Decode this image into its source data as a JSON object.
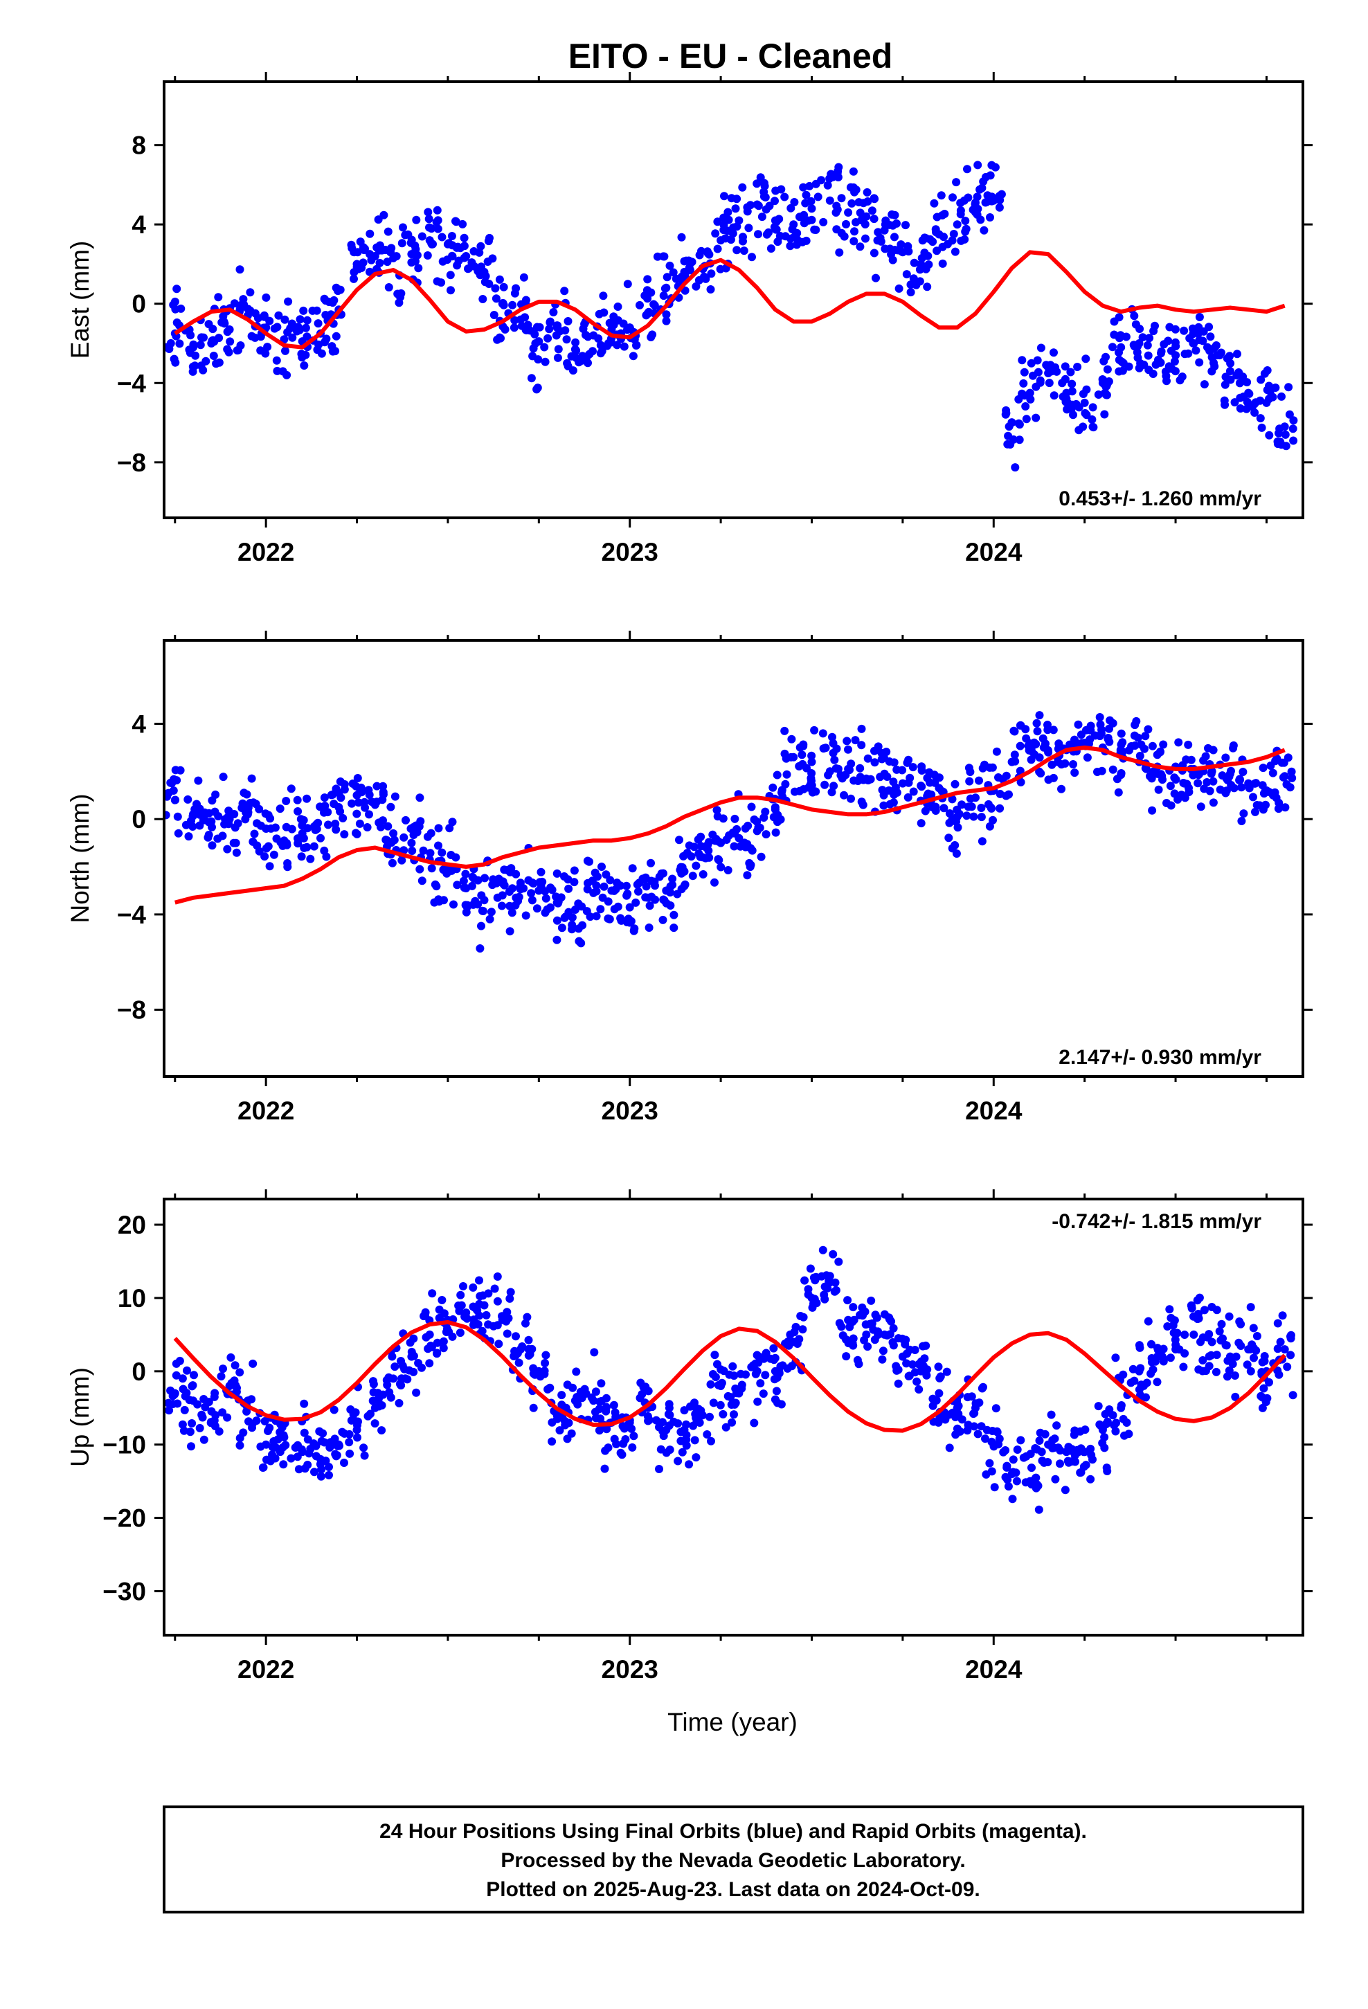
{
  "title": "EITO  - EU - Cleaned",
  "xlabel": "Time (year)",
  "footer": {
    "line1": "24 Hour Positions Using Final Orbits (blue) and Rapid Orbits (magenta).",
    "line2": "Processed by the Nevada Geodetic Laboratory.",
    "line3": "Plotted on 2025-Aug-23. Last data on 2024-Oct-09."
  },
  "colors": {
    "observations": "#0000ff",
    "model": "#ff0000",
    "frame": "#000000"
  },
  "chart_data": [
    {
      "type": "scatter",
      "ylabel": "East (mm)",
      "xlim": [
        2021.72,
        2024.85
      ],
      "ylim": [
        -10.8,
        11.2
      ],
      "x_ticks": [
        2022,
        2023,
        2024
      ],
      "y_ticks": [
        -8,
        -4,
        0,
        4,
        8
      ],
      "rate_label": "0.453+/- 1.260 mm/yr",
      "rate_position": "bottom-right",
      "series": [
        {
          "role": "observations",
          "color": "#0000ff",
          "x": [
            2021.75,
            2021.8,
            2021.85,
            2021.9,
            2021.95,
            2022.0,
            2022.05,
            2022.1,
            2022.15,
            2022.2,
            2022.25,
            2022.3,
            2022.35,
            2022.4,
            2022.45,
            2022.5,
            2022.55,
            2022.6,
            2022.65,
            2022.7,
            2022.75,
            2022.8,
            2022.85,
            2022.9,
            2022.95,
            2023.0,
            2023.05,
            2023.1,
            2023.15,
            2023.2,
            2023.25,
            2023.3,
            2023.35,
            2023.4,
            2023.45,
            2023.5,
            2023.55,
            2023.6,
            2023.65,
            2023.7,
            2023.75,
            2023.8,
            2023.85,
            2023.9,
            2023.95,
            2024.0,
            2024.05,
            2024.1,
            2024.15,
            2024.2,
            2024.25,
            2024.3,
            2024.35,
            2024.4,
            2024.45,
            2024.5,
            2024.55,
            2024.6,
            2024.65,
            2024.7,
            2024.75,
            2024.8
          ],
          "y": [
            -1.5,
            -2.2,
            -2.0,
            -1.3,
            -0.6,
            -1.2,
            -1.8,
            -1.9,
            -1.5,
            -0.3,
            2.0,
            2.4,
            2.3,
            2.5,
            3.2,
            3.0,
            2.4,
            1.6,
            0.0,
            -0.8,
            -1.9,
            -1.2,
            -2.3,
            -1.6,
            -1.3,
            -1.2,
            -0.5,
            0.8,
            1.6,
            1.8,
            3.2,
            4.2,
            5.0,
            4.2,
            4.0,
            4.8,
            5.2,
            4.6,
            4.4,
            3.7,
            2.6,
            2.0,
            3.5,
            4.0,
            5.1,
            5.2,
            -6.0,
            -4.5,
            -3.5,
            -4.5,
            -5.0,
            -4.0,
            -2.2,
            -2.0,
            -3.0,
            -2.6,
            -2.0,
            -2.7,
            -3.4,
            -4.5,
            -5.0,
            -6.2
          ]
        },
        {
          "role": "model",
          "color": "#ff0000",
          "x": [
            2021.75,
            2021.8,
            2021.85,
            2021.9,
            2021.95,
            2022.0,
            2022.05,
            2022.1,
            2022.15,
            2022.2,
            2022.25,
            2022.3,
            2022.35,
            2022.4,
            2022.45,
            2022.5,
            2022.55,
            2022.6,
            2022.65,
            2022.7,
            2022.75,
            2022.8,
            2022.85,
            2022.9,
            2022.95,
            2023.0,
            2023.05,
            2023.1,
            2023.15,
            2023.2,
            2023.25,
            2023.3,
            2023.35,
            2023.4,
            2023.45,
            2023.5,
            2023.55,
            2023.6,
            2023.65,
            2023.7,
            2023.75,
            2023.8,
            2023.85,
            2023.9,
            2023.95,
            2024.0,
            2024.05,
            2024.1,
            2024.15,
            2024.2,
            2024.25,
            2024.3,
            2024.35,
            2024.4,
            2024.45,
            2024.5,
            2024.55,
            2024.6,
            2024.65,
            2024.7,
            2024.75,
            2024.8
          ],
          "y": [
            -1.5,
            -0.9,
            -0.4,
            -0.3,
            -0.8,
            -1.5,
            -2.1,
            -2.2,
            -1.5,
            -0.4,
            0.7,
            1.5,
            1.7,
            1.2,
            0.2,
            -0.9,
            -1.4,
            -1.3,
            -0.9,
            -0.3,
            0.1,
            0.1,
            -0.3,
            -1.0,
            -1.6,
            -1.7,
            -1.1,
            -0.1,
            1.0,
            1.9,
            2.2,
            1.7,
            0.8,
            -0.3,
            -0.9,
            -0.9,
            -0.5,
            0.1,
            0.5,
            0.5,
            0.1,
            -0.6,
            -1.2,
            -1.2,
            -0.5,
            0.6,
            1.8,
            2.6,
            2.5,
            1.6,
            0.6,
            -0.1,
            -0.4,
            -0.2,
            -0.1,
            -0.3,
            -0.4,
            -0.3,
            -0.2,
            -0.3,
            -0.4,
            -0.1
          ]
        }
      ]
    },
    {
      "type": "scatter",
      "ylabel": "North (mm)",
      "xlim": [
        2021.72,
        2024.85
      ],
      "ylim": [
        -10.8,
        7.5
      ],
      "x_ticks": [
        2022,
        2023,
        2024
      ],
      "y_ticks": [
        -8,
        -4,
        0,
        4
      ],
      "rate_label": "2.147+/- 0.930 mm/yr",
      "rate_position": "bottom-right",
      "series": [
        {
          "role": "observations",
          "color": "#0000ff",
          "x": [
            2021.75,
            2021.8,
            2021.85,
            2021.9,
            2021.95,
            2022.0,
            2022.05,
            2022.1,
            2022.15,
            2022.2,
            2022.25,
            2022.3,
            2022.35,
            2022.4,
            2022.45,
            2022.5,
            2022.55,
            2022.6,
            2022.65,
            2022.7,
            2022.75,
            2022.8,
            2022.85,
            2022.9,
            2022.95,
            2023.0,
            2023.05,
            2023.1,
            2023.15,
            2023.2,
            2023.25,
            2023.3,
            2023.35,
            2023.4,
            2023.45,
            2023.5,
            2023.55,
            2023.6,
            2023.65,
            2023.7,
            2023.75,
            2023.8,
            2023.85,
            2023.9,
            2023.95,
            2024.0,
            2024.05,
            2024.1,
            2024.15,
            2024.2,
            2024.25,
            2024.3,
            2024.35,
            2024.4,
            2024.45,
            2024.5,
            2024.55,
            2024.6,
            2024.65,
            2024.7,
            2024.75,
            2024.8
          ],
          "y": [
            0.8,
            0.2,
            -0.1,
            0.0,
            0.2,
            -0.4,
            -0.9,
            -0.6,
            -0.8,
            0.5,
            1.0,
            0.6,
            -0.6,
            -1.0,
            -1.7,
            -2.1,
            -2.9,
            -3.4,
            -3.2,
            -2.9,
            -3.0,
            -3.5,
            -3.8,
            -3.1,
            -3.0,
            -3.7,
            -3.3,
            -3.0,
            -2.2,
            -1.6,
            -1.0,
            -0.8,
            -0.5,
            0.4,
            2.6,
            2.4,
            2.0,
            2.1,
            1.7,
            1.9,
            1.5,
            1.4,
            1.3,
            0.1,
            0.9,
            1.2,
            2.4,
            3.1,
            2.8,
            2.9,
            3.2,
            3.0,
            2.8,
            2.4,
            2.2,
            2.2,
            2.1,
            2.0,
            1.9,
            1.5,
            1.2,
            1.8
          ]
        },
        {
          "role": "model",
          "color": "#ff0000",
          "x": [
            2021.75,
            2021.8,
            2021.85,
            2021.9,
            2021.95,
            2022.0,
            2022.05,
            2022.1,
            2022.15,
            2022.2,
            2022.25,
            2022.3,
            2022.35,
            2022.4,
            2022.45,
            2022.5,
            2022.55,
            2022.6,
            2022.65,
            2022.7,
            2022.75,
            2022.8,
            2022.85,
            2022.9,
            2022.95,
            2023.0,
            2023.05,
            2023.1,
            2023.15,
            2023.2,
            2023.25,
            2023.3,
            2023.35,
            2023.4,
            2023.45,
            2023.5,
            2023.55,
            2023.6,
            2023.65,
            2023.7,
            2023.75,
            2023.8,
            2023.85,
            2023.9,
            2023.95,
            2024.0,
            2024.05,
            2024.1,
            2024.15,
            2024.2,
            2024.25,
            2024.3,
            2024.35,
            2024.4,
            2024.45,
            2024.5,
            2024.55,
            2024.6,
            2024.65,
            2024.7,
            2024.75,
            2024.8
          ],
          "y": [
            -3.5,
            -3.3,
            -3.2,
            -3.1,
            -3.0,
            -2.9,
            -2.8,
            -2.5,
            -2.1,
            -1.6,
            -1.3,
            -1.2,
            -1.4,
            -1.6,
            -1.8,
            -1.9,
            -2.0,
            -1.9,
            -1.6,
            -1.4,
            -1.2,
            -1.1,
            -1.0,
            -0.9,
            -0.9,
            -0.8,
            -0.6,
            -0.3,
            0.1,
            0.4,
            0.7,
            0.9,
            0.9,
            0.8,
            0.6,
            0.4,
            0.3,
            0.2,
            0.2,
            0.3,
            0.5,
            0.7,
            0.9,
            1.1,
            1.2,
            1.3,
            1.6,
            2.0,
            2.5,
            2.9,
            3.0,
            2.9,
            2.6,
            2.4,
            2.2,
            2.1,
            2.1,
            2.2,
            2.3,
            2.4,
            2.6,
            2.9
          ]
        }
      ]
    },
    {
      "type": "scatter",
      "ylabel": "Up (mm)",
      "xlim": [
        2021.72,
        2024.85
      ],
      "ylim": [
        -36,
        23.5
      ],
      "x_ticks": [
        2022,
        2023,
        2024
      ],
      "y_ticks": [
        -30,
        -20,
        -10,
        0,
        10,
        20
      ],
      "rate_label": "-0.742+/- 1.815 mm/yr",
      "rate_position": "top-right",
      "series": [
        {
          "role": "observations",
          "color": "#0000ff",
          "x": [
            2021.75,
            2021.8,
            2021.85,
            2021.9,
            2021.95,
            2022.0,
            2022.05,
            2022.1,
            2022.15,
            2022.2,
            2022.25,
            2022.3,
            2022.35,
            2022.4,
            2022.45,
            2022.5,
            2022.55,
            2022.6,
            2022.65,
            2022.7,
            2022.75,
            2022.8,
            2022.85,
            2022.9,
            2022.95,
            2023.0,
            2023.05,
            2023.1,
            2023.15,
            2023.2,
            2023.25,
            2023.3,
            2023.35,
            2023.4,
            2023.45,
            2023.5,
            2023.55,
            2023.6,
            2023.65,
            2023.7,
            2023.75,
            2023.8,
            2023.85,
            2023.9,
            2023.95,
            2024.0,
            2024.05,
            2024.1,
            2024.15,
            2024.2,
            2024.25,
            2024.3,
            2024.35,
            2024.4,
            2024.45,
            2024.5,
            2024.55,
            2024.6,
            2024.65,
            2024.7,
            2024.75,
            2024.8
          ],
          "y": [
            -3,
            -4,
            -7,
            -2,
            -4,
            -10,
            -9,
            -11,
            -12,
            -10,
            -8,
            -5,
            -1,
            2,
            5,
            7,
            8,
            9,
            7,
            3,
            0,
            -6,
            -4,
            -4,
            -7,
            -7,
            -5,
            -8,
            -8,
            -6,
            -2,
            -3,
            0,
            0,
            4,
            10,
            13,
            7,
            5,
            5,
            2,
            0,
            -3,
            -5,
            -5,
            -10,
            -14,
            -15,
            -10,
            -11,
            -11,
            -8,
            -5,
            0,
            2,
            3,
            5,
            4,
            2,
            3,
            0,
            3
          ]
        },
        {
          "role": "model",
          "color": "#ff0000",
          "x": [
            2021.75,
            2021.8,
            2021.85,
            2021.9,
            2021.95,
            2022.0,
            2022.05,
            2022.1,
            2022.15,
            2022.2,
            2022.25,
            2022.3,
            2022.35,
            2022.4,
            2022.45,
            2022.5,
            2022.55,
            2022.6,
            2022.65,
            2022.7,
            2022.75,
            2022.8,
            2022.85,
            2022.9,
            2022.95,
            2023.0,
            2023.05,
            2023.1,
            2023.15,
            2023.2,
            2023.25,
            2023.3,
            2023.35,
            2023.4,
            2023.45,
            2023.5,
            2023.55,
            2023.6,
            2023.65,
            2023.7,
            2023.75,
            2023.8,
            2023.85,
            2023.9,
            2023.95,
            2024.0,
            2024.05,
            2024.1,
            2024.15,
            2024.2,
            2024.25,
            2024.3,
            2024.35,
            2024.4,
            2024.45,
            2024.5,
            2024.55,
            2024.6,
            2024.65,
            2024.7,
            2024.75,
            2024.8
          ],
          "y": [
            4.5,
            1.8,
            -0.8,
            -3.0,
            -4.8,
            -6.0,
            -6.6,
            -6.5,
            -5.6,
            -3.9,
            -1.6,
            1.0,
            3.4,
            5.3,
            6.4,
            6.7,
            6.0,
            4.3,
            2.0,
            -0.6,
            -3.0,
            -5.1,
            -6.5,
            -7.3,
            -7.2,
            -6.3,
            -4.6,
            -2.3,
            0.3,
            2.8,
            4.8,
            5.8,
            5.5,
            4.0,
            1.8,
            -0.8,
            -3.3,
            -5.5,
            -7.1,
            -8.0,
            -8.1,
            -7.2,
            -5.5,
            -3.2,
            -0.6,
            1.9,
            3.8,
            5.0,
            5.2,
            4.3,
            2.4,
            0.2,
            -2.0,
            -4.0,
            -5.5,
            -6.5,
            -6.8,
            -6.3,
            -5.0,
            -3.0,
            -0.5,
            2.2
          ]
        }
      ]
    }
  ]
}
